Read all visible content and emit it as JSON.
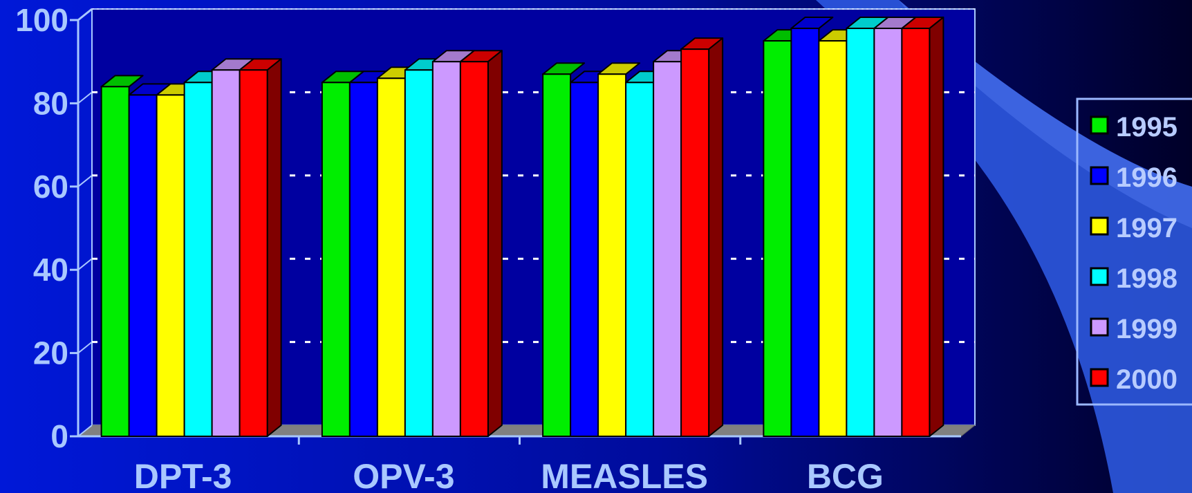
{
  "chart_data": {
    "type": "bar",
    "categories": [
      "DPT-3",
      "OPV-3",
      "MEASLES",
      "BCG"
    ],
    "series": [
      {
        "name": "1995",
        "color": "#00ee00",
        "values": [
          84,
          85,
          87,
          95
        ]
      },
      {
        "name": "1996",
        "color": "#0000ff",
        "values": [
          82,
          85,
          85,
          98
        ]
      },
      {
        "name": "1997",
        "color": "#ffff00",
        "values": [
          82,
          86,
          87,
          95
        ]
      },
      {
        "name": "1998",
        "color": "#00ffff",
        "values": [
          85,
          88,
          85,
          98
        ]
      },
      {
        "name": "1999",
        "color": "#cc99ff",
        "values": [
          88,
          90,
          90,
          98
        ]
      },
      {
        "name": "2000",
        "color": "#ff0000",
        "values": [
          88,
          90,
          93,
          98
        ]
      }
    ],
    "ylim": [
      0,
      100
    ],
    "yticks": [
      "0",
      "20",
      "40",
      "60",
      "80",
      "100"
    ],
    "grid": true,
    "legend_position": "right",
    "xlabel": "",
    "ylabel": "",
    "colors": {
      "background": "#0018d8",
      "axis": "#a9c8ff",
      "floor": "#808080"
    }
  }
}
